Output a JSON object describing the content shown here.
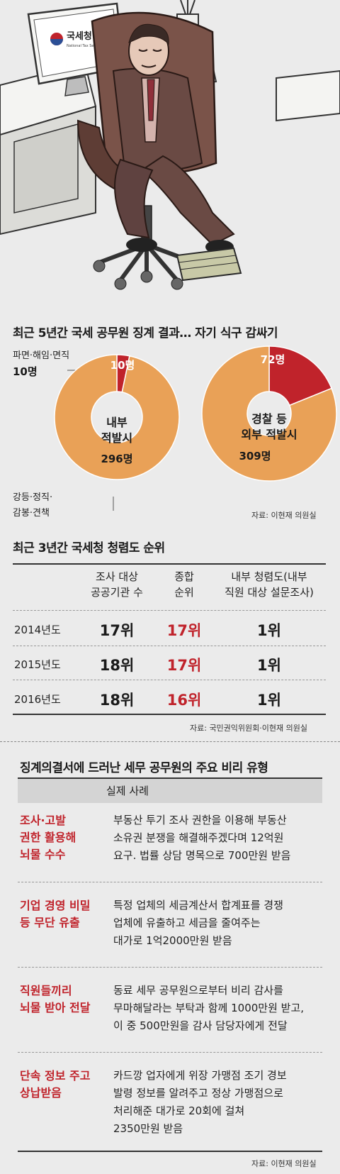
{
  "section1": {
    "title": "최근 5년간 국세 공무원 징계 결과… 자기 식구 감싸기",
    "top_label": "파면·해임·면직",
    "top_value": "10명",
    "bottom_label_line1": "강등·정직·",
    "bottom_label_line2": "감봉·견책",
    "source": "자료: 이현재 의원실"
  },
  "monitor_logo": {
    "name": "국세청",
    "subtitle": "National Tax Service"
  },
  "chart_data": [
    {
      "type": "pie",
      "center_label": [
        "내부",
        "적발시"
      ],
      "labels": [
        "파면·해임·면직",
        "강등·정직·감봉·견책"
      ],
      "values": [
        10,
        296
      ],
      "value_labels": [
        "10명",
        "296명"
      ],
      "colors": [
        "#c0232b",
        "#e9a157"
      ]
    },
    {
      "type": "pie",
      "center_label": [
        "경찰 등",
        "외부 적발시"
      ],
      "labels": [
        "파면·해임·면직",
        "강등·정직·감봉·견책"
      ],
      "values": [
        72,
        309
      ],
      "value_labels": [
        "72명",
        "309명"
      ],
      "colors": [
        "#c0232b",
        "#e9a157"
      ]
    },
    {
      "type": "table",
      "title": "최근 3년간 국세청 청렴도 순위",
      "columns": [
        "",
        "조사 대상\n공공기관 수",
        "종합\n순위",
        "내부 청렴도(내부\n직원 대상 설문조사)"
      ],
      "rows": [
        [
          "2014년도",
          "17위",
          "17위",
          "1위"
        ],
        [
          "2015년도",
          "18위",
          "17위",
          "1위"
        ],
        [
          "2016년도",
          "18위",
          "16위",
          "1위"
        ]
      ],
      "source": "자료: 국민권익위원회·이현재 의원실"
    }
  ],
  "section2": {
    "title": "최근 3년간 국세청 청렴도 순위",
    "headers": [
      [
        "조사 대상",
        "공공기관 수"
      ],
      [
        "종합",
        "순위"
      ],
      [
        "내부 청렴도(내부",
        "직원 대상 설문조사)"
      ]
    ],
    "rows": [
      {
        "year": "2014년도",
        "a": "17위",
        "b": "17위",
        "c": "1위"
      },
      {
        "year": "2015년도",
        "a": "18위",
        "b": "17위",
        "c": "1위"
      },
      {
        "year": "2016년도",
        "a": "18위",
        "b": "16위",
        "c": "1위"
      }
    ],
    "source": "자료: 국민권익위원회·이현재 의원실"
  },
  "section3": {
    "title": "징계의결서에 드러난 세무 공무원의 주요 비리 유형",
    "header": "실제 사례",
    "items": [
      {
        "cat": [
          "조사·고발",
          "권한 활용해",
          "뇌물 수수"
        ],
        "desc": [
          "부동산 투기 조사 권한을 이용해 부동산",
          "소유권 분쟁을 해결해주겠다며 12억원",
          "요구. 법률 상담 명목으로 700만원 받음"
        ]
      },
      {
        "cat": [
          "기업 경영 비밀",
          "등 무단 유출"
        ],
        "desc": [
          "특정 업체의 세금계산서 합계표를 경쟁",
          "업체에 유출하고 세금을 줄여주는",
          "대가로 1억2000만원 받음"
        ]
      },
      {
        "cat": [
          "직원들끼리",
          "뇌물 받아 전달"
        ],
        "desc": [
          "동료 세무 공무원으로부터 비리 감사를",
          "무마해달라는 부탁과 함께 1000만원 받고,",
          "이 중 500만원을 감사 담당자에게 전달"
        ]
      },
      {
        "cat": [
          "단속 정보 주고",
          "상납받음"
        ],
        "desc": [
          "카드깡 업자에게 위장 가맹점 조기 경보",
          "발령 정보를 알려주고 정상 가맹점으로",
          "처리해준 대가로 20회에 걸쳐",
          "2350만원 받음"
        ]
      }
    ],
    "source": "자료: 이현재 의원실"
  }
}
